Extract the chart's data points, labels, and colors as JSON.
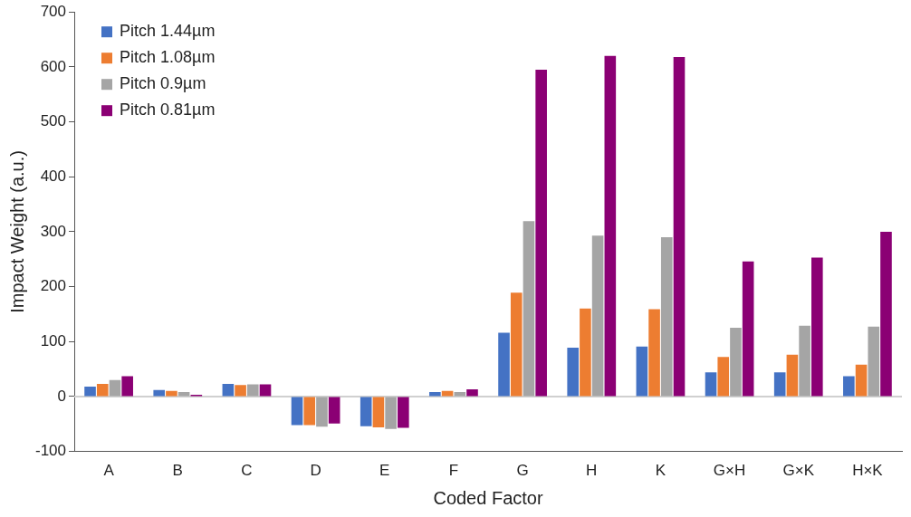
{
  "chart_data": {
    "type": "bar",
    "xlabel": "Coded Factor",
    "ylabel": "Impact Weight (a.u.)",
    "categories": [
      "A",
      "B",
      "C",
      "D",
      "E",
      "F",
      "G",
      "H",
      "K",
      "G×H",
      "G×K",
      "H×K"
    ],
    "series": [
      {
        "name": "Pitch 1.44µm",
        "color": "#4472c4",
        "values": [
          18,
          12,
          23,
          -52,
          -54,
          8,
          116,
          89,
          91,
          44,
          44,
          37
        ]
      },
      {
        "name": "Pitch 1.08µm",
        "color": "#ed7d31",
        "values": [
          23,
          10,
          21,
          -52,
          -56,
          10,
          189,
          160,
          159,
          72,
          76,
          58
        ]
      },
      {
        "name": "Pitch 0.9µm",
        "color": "#a5a5a5",
        "values": [
          30,
          8,
          22,
          -55,
          -59,
          8,
          319,
          293,
          290,
          125,
          129,
          127
        ]
      },
      {
        "name": "Pitch 0.81µm",
        "color": "#8b0074",
        "values": [
          37,
          3,
          22,
          -49,
          -57,
          13,
          595,
          620,
          618,
          246,
          253,
          300
        ]
      }
    ],
    "ylim": [
      -100,
      700
    ],
    "yticks": [
      -100,
      0,
      100,
      200,
      300,
      400,
      500,
      600,
      700
    ],
    "ref_lines": [
      {
        "axis": "y",
        "value": 0,
        "color": "#d0d0d0"
      }
    ],
    "grid": false,
    "legend": "top left"
  }
}
